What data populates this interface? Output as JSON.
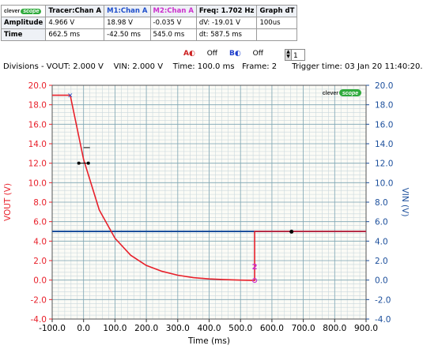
{
  "info_table": {
    "headers": [
      "Tracer:Chan A",
      "M1:Chan A",
      "M2:Chan A",
      "Freq: 1.702 Hz",
      "Graph dT"
    ],
    "header_colors": [
      "#000000",
      "#1f4fcc",
      "#cc2fcc",
      "#000000",
      "#000000"
    ],
    "rows": [
      {
        "label": "Amplitude",
        "cells": [
          "4.966 V",
          "18.98 V",
          "-0.035 V",
          "dV: -19.01 V",
          "100us"
        ]
      },
      {
        "label": "Time",
        "cells": [
          "662.5 ms",
          "-42.50 ms",
          "545.0 ms",
          "dt:  587.5 ms",
          ""
        ]
      }
    ]
  },
  "logo": {
    "left": "clever",
    "right": "scope"
  },
  "toolbar": {
    "a_label": "A",
    "a_state": "Off",
    "b_label": "B",
    "b_state": "Off",
    "frame_value": "1"
  },
  "status": {
    "divisions": "Divisions - VOUT: 2.000 V",
    "vin": "VIN: 2.000 V",
    "time": "Time: 100.0 ms",
    "frame": "Frame: 2",
    "trigger": "Trigger time: 03 Jan 20 11:40:20."
  },
  "chart_data": {
    "type": "line",
    "xlabel": "Time (ms)",
    "ylabel_left": "VOUT (V)",
    "ylabel_right": "VIN (V)",
    "xlim": [
      -100,
      900
    ],
    "ylim": [
      -4,
      20
    ],
    "x_ticks": [
      "-100.0",
      "0.0",
      "100.0",
      "200.0",
      "300.0",
      "400.0",
      "500.0",
      "600.0",
      "700.0",
      "800.0",
      "900.0"
    ],
    "y_ticks": [
      "-4.0",
      "-2.0",
      "0.0",
      "2.0",
      "4.0",
      "6.0",
      "8.0",
      "10.0",
      "12.0",
      "14.0",
      "16.0",
      "18.0",
      "20.0"
    ],
    "grid": true,
    "series": [
      {
        "name": "VOUT",
        "color": "#e8202a",
        "x": [
          -100,
          -42.5,
          -42.5,
          0,
          50,
          100,
          150,
          200,
          250,
          300,
          350,
          400,
          450,
          500,
          545,
          545,
          900
        ],
        "y": [
          18.98,
          18.98,
          18.98,
          12.4,
          7.2,
          4.3,
          2.55,
          1.5,
          0.9,
          0.5,
          0.25,
          0.12,
          0.05,
          0.0,
          -0.035,
          5.0,
          5.0
        ]
      },
      {
        "name": "VIN",
        "color": "#1c4f9c",
        "x": [
          -100,
          900
        ],
        "y": [
          5.0,
          5.0
        ]
      }
    ],
    "markers": [
      {
        "label": "",
        "x": -42.5,
        "y": 18.98,
        "color": "#1f4fcc",
        "shape": "x"
      },
      {
        "label": "2",
        "x": 545,
        "y": -0.035,
        "color": "#cc2fcc",
        "shape": "circle"
      },
      {
        "label": "",
        "x": 662.5,
        "y": 4.966,
        "color": "#000000",
        "shape": "dot"
      }
    ],
    "bg_color": "#fbfbf6",
    "grid_major_color": "#7fa6b3",
    "grid_minor_color": "#c9d7dc"
  }
}
